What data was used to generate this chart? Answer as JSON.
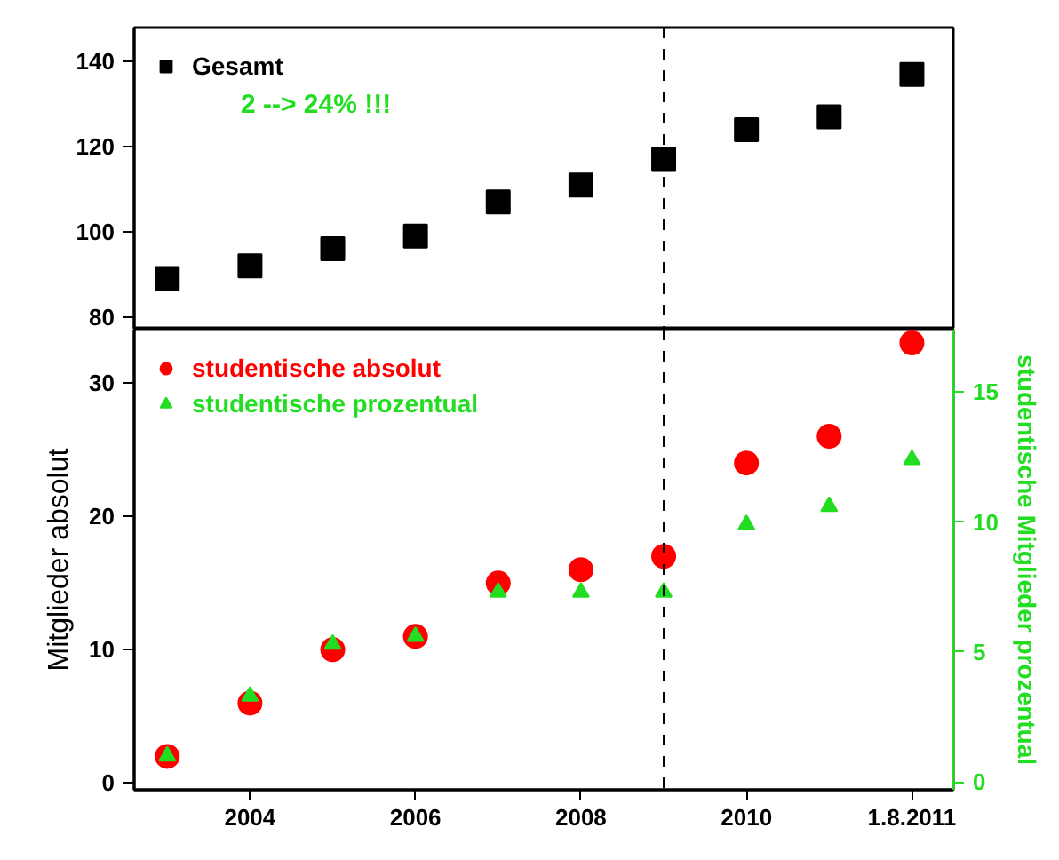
{
  "chart_data": [
    {
      "type": "scatter",
      "x": [
        2003,
        2004,
        2005,
        2006,
        2007,
        2008,
        2009,
        2010,
        2011,
        2012
      ],
      "xlim": [
        2002.6,
        2012.5
      ],
      "ylim": [
        77,
        148
      ],
      "yticks": [
        80,
        100,
        120,
        140
      ],
      "tick_labels": "y",
      "grid": false,
      "legend": "top left",
      "annotations": [
        "2 --> 24% !!!"
      ],
      "ref_lines": [
        {
          "axis": "x",
          "value": 2009,
          "line_style": "dashed",
          "color": "#000000"
        }
      ],
      "series": [
        {
          "name": "Gesamt",
          "color": "#000000",
          "marker": "square",
          "values": [
            89,
            92,
            96,
            99,
            107,
            111,
            117,
            124,
            127,
            137
          ]
        }
      ]
    },
    {
      "type": "scatter",
      "x": [
        2003,
        2004,
        2005,
        2006,
        2007,
        2008,
        2009,
        2010,
        2011,
        2012
      ],
      "xlim": [
        2002.6,
        2012.5
      ],
      "xticks": [
        2004,
        2006,
        2008,
        {
          "value": 2010,
          "label": "2010"
        },
        {
          "value": 2012,
          "label": "1.8.2011"
        }
      ],
      "ylim": [
        -0.5,
        34
      ],
      "yticks": [
        0,
        10,
        20,
        30
      ],
      "y2lim": [
        -0.3,
        17.4
      ],
      "y2ticks": [
        0,
        5,
        10,
        15
      ],
      "ylabel": "Mitglieder absolut",
      "y2label": "studentische Mitglieder prozentual",
      "grid": false,
      "legend": "top left",
      "ref_lines": [
        {
          "axis": "x",
          "value": 2009,
          "line_style": "dashed",
          "color": "#000000"
        }
      ],
      "series": [
        {
          "name": "studentische absolut",
          "color": "#ff0000",
          "marker": "circle",
          "values": [
            2,
            6,
            10,
            11,
            15,
            16,
            17,
            24,
            26,
            33
          ]
        },
        {
          "name": "studentische prozentual",
          "color": "#22dd22",
          "marker": "triangle",
          "axis": "y2",
          "values": [
            1,
            3.3,
            5.3,
            5.6,
            7.3,
            7.3,
            7.3,
            9.9,
            10.6,
            12.4
          ]
        }
      ]
    }
  ]
}
